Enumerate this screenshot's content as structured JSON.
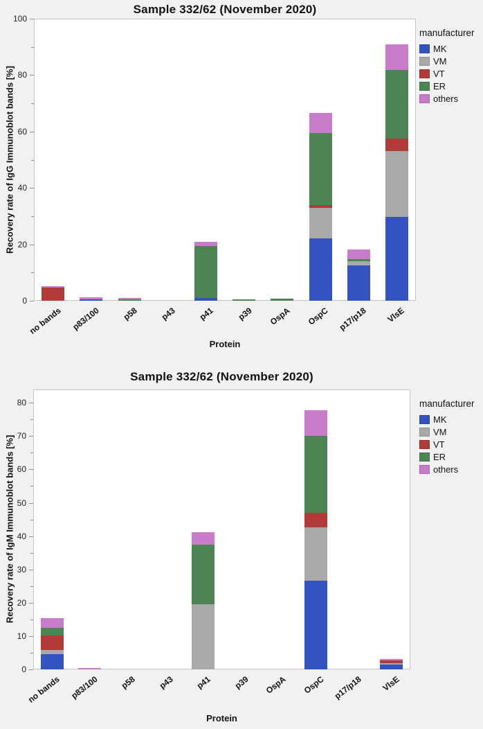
{
  "page": {
    "background": "#f1f1f1",
    "accent_colors": {
      "MK": "#3353c1",
      "VM": "#a9a9a9",
      "VT": "#b23b38",
      "ER": "#4c8454",
      "others": "#c77bc8"
    }
  },
  "chart_data": [
    {
      "type": "bar",
      "stacked": true,
      "title": "Sample 332/62 (November 2020)",
      "xlabel": "Protein",
      "ylabel": "Recovery rate of IgG Immunoblot bands [%]",
      "legend_title": "manufacturer",
      "legend_position": "right",
      "grid": false,
      "ylim": [
        0,
        100
      ],
      "yticks_major": [
        0,
        20,
        40,
        60,
        80,
        100
      ],
      "yticks_minor": [
        10,
        30,
        50,
        70,
        90
      ],
      "categories": [
        "no bands",
        "p83/100",
        "p58",
        "p43",
        "p41",
        "p39",
        "OspA",
        "OspC",
        "p17/p18",
        "VlsE"
      ],
      "series": [
        {
          "name": "MK",
          "color": "#3353c1",
          "values": [
            0,
            0.6,
            0,
            0,
            1.0,
            0,
            0,
            22.2,
            12.5,
            29.8
          ]
        },
        {
          "name": "VM",
          "color": "#a9a9a9",
          "values": [
            0,
            0,
            0,
            0,
            0,
            0,
            0,
            10.8,
            1.6,
            23.3
          ]
        },
        {
          "name": "VT",
          "color": "#b23b38",
          "values": [
            4.7,
            0,
            0,
            0,
            0,
            0,
            0,
            0.9,
            0,
            4.3
          ]
        },
        {
          "name": "ER",
          "color": "#4c8454",
          "values": [
            0,
            0,
            0.5,
            0,
            18.3,
            0.5,
            0.7,
            25.6,
            0.7,
            24.4
          ]
        },
        {
          "name": "others",
          "color": "#c77bc8",
          "values": [
            0.5,
            0.6,
            0.5,
            0,
            1.5,
            0,
            0,
            7.2,
            3.4,
            9.2
          ]
        }
      ]
    },
    {
      "type": "bar",
      "stacked": true,
      "title": "Sample 332/62 (November 2020)",
      "xlabel": "Protein",
      "ylabel": "Recovery rate of IgM Immunoblot bands [%]",
      "legend_title": "manufacturer",
      "legend_position": "right",
      "grid": false,
      "ylim": [
        0,
        84
      ],
      "yticks_major": [
        0,
        10,
        20,
        30,
        40,
        50,
        60,
        70,
        80
      ],
      "yticks_minor": [
        5,
        15,
        25,
        35,
        45,
        55,
        65,
        75
      ],
      "categories": [
        "no bands",
        "p83/100",
        "p58",
        "p43",
        "p41",
        "p39",
        "OspA",
        "OspC",
        "p17/p18",
        "VlsE"
      ],
      "series": [
        {
          "name": "MK",
          "color": "#3353c1",
          "values": [
            4.6,
            0,
            0,
            0,
            0,
            0,
            0,
            26.7,
            0,
            1.5
          ]
        },
        {
          "name": "VM",
          "color": "#a9a9a9",
          "values": [
            1.2,
            0,
            0,
            0,
            19.6,
            0,
            0,
            16.0,
            0,
            0.3
          ]
        },
        {
          "name": "VT",
          "color": "#b23b38",
          "values": [
            4.4,
            0,
            0,
            0,
            0,
            0,
            0,
            4.3,
            0,
            0.9
          ]
        },
        {
          "name": "ER",
          "color": "#4c8454",
          "values": [
            2.2,
            0,
            0,
            0,
            17.8,
            0,
            0,
            23.0,
            0,
            0
          ]
        },
        {
          "name": "others",
          "color": "#c77bc8",
          "values": [
            2.9,
            0.4,
            0,
            0,
            3.7,
            0,
            0,
            7.8,
            0,
            0.5
          ]
        }
      ]
    }
  ]
}
